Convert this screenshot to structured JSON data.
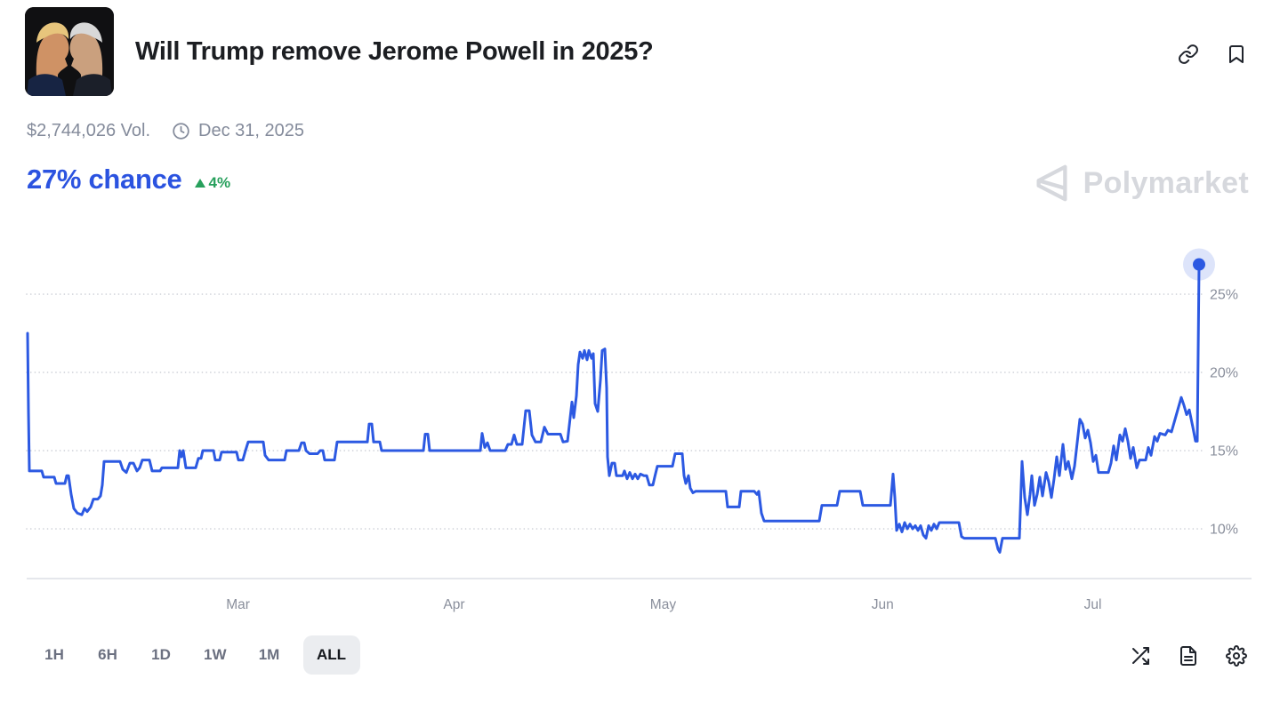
{
  "header": {
    "title": "Will Trump remove Jerome Powell in 2025?",
    "icons": [
      "link-icon",
      "bookmark-icon"
    ]
  },
  "meta": {
    "volume": "$2,744,026 Vol.",
    "icon": "clock-icon",
    "end_date": "Dec 31, 2025"
  },
  "chance": {
    "value": "27% chance",
    "direction": "up",
    "change": "4%",
    "color": "#2b53e0",
    "change_color": "#27a05c"
  },
  "watermark": {
    "brand": "Polymarket",
    "color": "#d6d8dd"
  },
  "timeframes": {
    "options": [
      "1H",
      "6H",
      "1D",
      "1W",
      "1M",
      "ALL"
    ],
    "selected": "ALL"
  },
  "footer": {
    "icons": [
      "shuffle-icon",
      "file-icon",
      "settings-icon"
    ]
  },
  "chart_data": {
    "type": "line",
    "title": "Yes probability over time",
    "unit": "percent",
    "line_color": "#2c59e2",
    "grid": true,
    "legend": false,
    "current": {
      "value": 26.9,
      "display": "27%"
    },
    "x_axis": {
      "labels": [
        "Mar",
        "Apr",
        "May",
        "Jun",
        "Jul"
      ],
      "positions": [
        0.18,
        0.364,
        0.542,
        0.729,
        0.908
      ]
    },
    "y_axis": {
      "ticks": [
        25,
        20,
        15,
        10
      ],
      "tick_suffix": "%",
      "range_top": 28,
      "range_bottom": 7
    },
    "points": [
      [
        1,
        22.5
      ],
      [
        2,
        17.5
      ],
      [
        3,
        13.7
      ],
      [
        17,
        13.7
      ],
      [
        19,
        13.3
      ],
      [
        31,
        13.3
      ],
      [
        33,
        12.9
      ],
      [
        43,
        12.9
      ],
      [
        45,
        13.4
      ],
      [
        47,
        13.4
      ],
      [
        50,
        12.2
      ],
      [
        53,
        11.3
      ],
      [
        57,
        11.0
      ],
      [
        62,
        10.9
      ],
      [
        65,
        11.3
      ],
      [
        68,
        11.1
      ],
      [
        72,
        11.4
      ],
      [
        75,
        11.9
      ],
      [
        80,
        11.9
      ],
      [
        83,
        12.1
      ],
      [
        85,
        12.8
      ],
      [
        87,
        14.3
      ],
      [
        105,
        14.3
      ],
      [
        108,
        13.8
      ],
      [
        112,
        13.6
      ],
      [
        116,
        14.2
      ],
      [
        120,
        14.2
      ],
      [
        124,
        13.7
      ],
      [
        127,
        13.9
      ],
      [
        130,
        14.4
      ],
      [
        138,
        14.4
      ],
      [
        141,
        13.7
      ],
      [
        150,
        13.7
      ],
      [
        152,
        13.9
      ],
      [
        170,
        13.9
      ],
      [
        172,
        15.0
      ],
      [
        174,
        14.6
      ],
      [
        176,
        15.0
      ],
      [
        179,
        13.9
      ],
      [
        190,
        13.9
      ],
      [
        193,
        14.5
      ],
      [
        196,
        14.5
      ],
      [
        198,
        15.0
      ],
      [
        210,
        15.0
      ],
      [
        212,
        14.4
      ],
      [
        217,
        14.4
      ],
      [
        219,
        14.9
      ],
      [
        236,
        14.9
      ],
      [
        238,
        14.4
      ],
      [
        243,
        14.4
      ],
      [
        246,
        15.0
      ],
      [
        249,
        15.55
      ],
      [
        266,
        15.55
      ],
      [
        268,
        14.7
      ],
      [
        272,
        14.4
      ],
      [
        290,
        14.4
      ],
      [
        292,
        15.0
      ],
      [
        306,
        15.0
      ],
      [
        309,
        15.5
      ],
      [
        312,
        15.5
      ],
      [
        314,
        15.0
      ],
      [
        318,
        14.8
      ],
      [
        327,
        14.8
      ],
      [
        330,
        15.0
      ],
      [
        333,
        15.0
      ],
      [
        335,
        14.4
      ],
      [
        346,
        14.4
      ],
      [
        349,
        15.55
      ],
      [
        383,
        15.55
      ],
      [
        385,
        16.7
      ],
      [
        388,
        16.7
      ],
      [
        390,
        15.55
      ],
      [
        397,
        15.55
      ],
      [
        399,
        15.0
      ],
      [
        446,
        15.0
      ],
      [
        448,
        16.05
      ],
      [
        451,
        16.05
      ],
      [
        453,
        15.0
      ],
      [
        510,
        15.0
      ],
      [
        512,
        16.1
      ],
      [
        515,
        15.2
      ],
      [
        518,
        15.5
      ],
      [
        521,
        15.0
      ],
      [
        538,
        15.0
      ],
      [
        541,
        15.4
      ],
      [
        545,
        15.4
      ],
      [
        548,
        16.0
      ],
      [
        551,
        15.4
      ],
      [
        557,
        15.4
      ],
      [
        561,
        17.55
      ],
      [
        565,
        17.55
      ],
      [
        568,
        16.0
      ],
      [
        572,
        15.55
      ],
      [
        578,
        15.55
      ],
      [
        582,
        16.5
      ],
      [
        586,
        16.05
      ],
      [
        600,
        16.05
      ],
      [
        603,
        15.55
      ],
      [
        608,
        15.6
      ],
      [
        611,
        17.1
      ],
      [
        613,
        18.1
      ],
      [
        615,
        17.1
      ],
      [
        618,
        18.5
      ],
      [
        620,
        20.5
      ],
      [
        622,
        21.3
      ],
      [
        625,
        20.9
      ],
      [
        627,
        21.4
      ],
      [
        630,
        20.8
      ],
      [
        632,
        21.4
      ],
      [
        635,
        20.9
      ],
      [
        637,
        21.2
      ],
      [
        639,
        18.0
      ],
      [
        642,
        17.5
      ],
      [
        645,
        19.5
      ],
      [
        647,
        21.4
      ],
      [
        650,
        21.5
      ],
      [
        652,
        19.0
      ],
      [
        653,
        14.6
      ],
      [
        655,
        13.4
      ],
      [
        658,
        14.2
      ],
      [
        661,
        14.2
      ],
      [
        663,
        13.4
      ],
      [
        670,
        13.4
      ],
      [
        672,
        13.7
      ],
      [
        675,
        13.2
      ],
      [
        678,
        13.6
      ],
      [
        681,
        13.2
      ],
      [
        684,
        13.5
      ],
      [
        687,
        13.2
      ],
      [
        690,
        13.5
      ],
      [
        694,
        13.4
      ],
      [
        697,
        13.4
      ],
      [
        700,
        12.8
      ],
      [
        704,
        12.8
      ],
      [
        706,
        13.3
      ],
      [
        709,
        14.0
      ],
      [
        726,
        14.0
      ],
      [
        729,
        14.8
      ],
      [
        737,
        14.8
      ],
      [
        739,
        13.4
      ],
      [
        741,
        12.9
      ],
      [
        744,
        13.4
      ],
      [
        746,
        12.6
      ],
      [
        749,
        12.3
      ],
      [
        752,
        12.4
      ],
      [
        786,
        12.4
      ],
      [
        788,
        11.4
      ],
      [
        801,
        11.4
      ],
      [
        803,
        12.4
      ],
      [
        818,
        12.4
      ],
      [
        821,
        12.2
      ],
      [
        823,
        12.4
      ],
      [
        826,
        11.0
      ],
      [
        829,
        10.5
      ],
      [
        891,
        10.5
      ],
      [
        894,
        11.5
      ],
      [
        911,
        11.5
      ],
      [
        914,
        12.4
      ],
      [
        937,
        12.4
      ],
      [
        940,
        11.5
      ],
      [
        956,
        11.5
      ],
      [
        971,
        11.5
      ],
      [
        974,
        13.5
      ],
      [
        976,
        12.0
      ],
      [
        978,
        9.9
      ],
      [
        981,
        10.3
      ],
      [
        984,
        9.8
      ],
      [
        987,
        10.4
      ],
      [
        990,
        10.0
      ],
      [
        993,
        10.3
      ],
      [
        996,
        10.0
      ],
      [
        999,
        10.2
      ],
      [
        1002,
        9.9
      ],
      [
        1005,
        10.2
      ],
      [
        1008,
        9.6
      ],
      [
        1011,
        9.4
      ],
      [
        1014,
        10.2
      ],
      [
        1017,
        9.9
      ],
      [
        1020,
        10.3
      ],
      [
        1023,
        10.0
      ],
      [
        1026,
        10.4
      ],
      [
        1048,
        10.4
      ],
      [
        1051,
        9.5
      ],
      [
        1054,
        9.4
      ],
      [
        1089,
        9.4
      ],
      [
        1092,
        8.7
      ],
      [
        1094,
        8.5
      ],
      [
        1097,
        9.4
      ],
      [
        1116,
        9.4
      ],
      [
        1119,
        14.3
      ],
      [
        1122,
        12.0
      ],
      [
        1125,
        10.9
      ],
      [
        1128,
        12.2
      ],
      [
        1130,
        13.4
      ],
      [
        1133,
        11.5
      ],
      [
        1136,
        12.2
      ],
      [
        1139,
        13.3
      ],
      [
        1142,
        12.1
      ],
      [
        1146,
        13.6
      ],
      [
        1149,
        13.0
      ],
      [
        1152,
        12.0
      ],
      [
        1155,
        13.2
      ],
      [
        1158,
        14.6
      ],
      [
        1161,
        13.4
      ],
      [
        1165,
        15.4
      ],
      [
        1168,
        13.8
      ],
      [
        1171,
        14.3
      ],
      [
        1175,
        13.2
      ],
      [
        1178,
        14.0
      ],
      [
        1181,
        15.5
      ],
      [
        1184,
        17.0
      ],
      [
        1187,
        16.7
      ],
      [
        1190,
        15.8
      ],
      [
        1193,
        16.3
      ],
      [
        1196,
        15.5
      ],
      [
        1199,
        14.3
      ],
      [
        1202,
        14.7
      ],
      [
        1205,
        13.6
      ],
      [
        1216,
        13.6
      ],
      [
        1219,
        14.2
      ],
      [
        1222,
        15.3
      ],
      [
        1225,
        14.4
      ],
      [
        1229,
        16.0
      ],
      [
        1232,
        15.6
      ],
      [
        1235,
        16.4
      ],
      [
        1238,
        15.6
      ],
      [
        1241,
        14.5
      ],
      [
        1244,
        15.2
      ],
      [
        1248,
        13.9
      ],
      [
        1251,
        14.4
      ],
      [
        1258,
        14.4
      ],
      [
        1261,
        15.2
      ],
      [
        1264,
        14.7
      ],
      [
        1268,
        15.9
      ],
      [
        1271,
        15.6
      ],
      [
        1274,
        16.1
      ],
      [
        1280,
        16.0
      ],
      [
        1283,
        16.3
      ],
      [
        1287,
        16.2
      ],
      [
        1292,
        17.2
      ],
      [
        1298,
        18.4
      ],
      [
        1301,
        17.9
      ],
      [
        1304,
        17.3
      ],
      [
        1307,
        17.6
      ],
      [
        1311,
        16.5
      ],
      [
        1314,
        15.6
      ],
      [
        1316,
        15.6
      ],
      [
        1318,
        26.9
      ]
    ]
  }
}
